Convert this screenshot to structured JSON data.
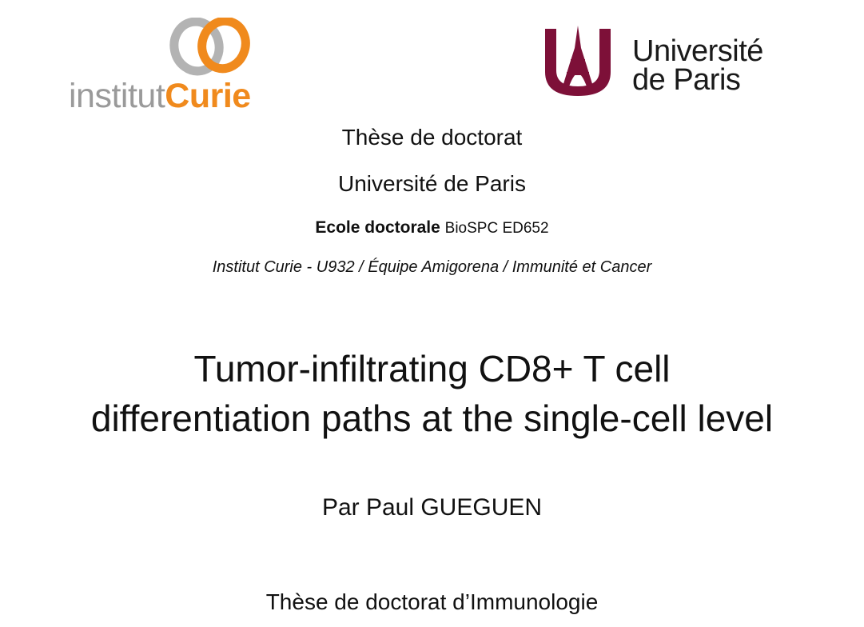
{
  "logos": {
    "curie": {
      "wordmark_left": "institut",
      "wordmark_right": "Curie",
      "colors": {
        "grey": "#9a9a9a",
        "orange": "#f08a1d"
      }
    },
    "universite": {
      "line1": "Université",
      "line2": "de Paris",
      "colors": {
        "burgundy": "#7d1038",
        "text": "#1a1a1a"
      }
    }
  },
  "header": {
    "degree": "Thèse de doctorat",
    "university": "Université de Paris",
    "school_label": "Ecole doctorale",
    "school_name": "BioSPC ED652",
    "lab": "Institut Curie - U932 / Équipe Amigorena / Immunité et Cancer"
  },
  "thesis": {
    "title_line1": "Tumor-infiltrating CD8+ T cell",
    "title_line2": "differentiation paths at the single-cell level",
    "author": "Par Paul GUEGUEN",
    "discipline": "Thèse de doctorat d’Immunologie"
  }
}
